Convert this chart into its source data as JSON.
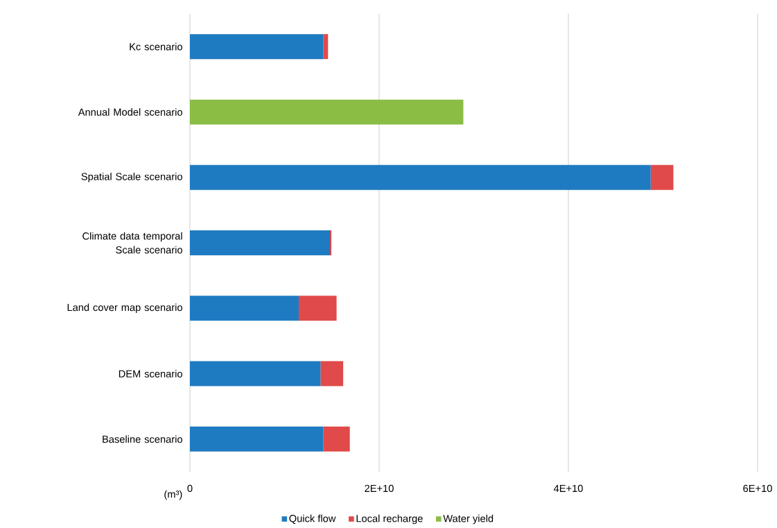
{
  "chart_data": {
    "type": "bar",
    "orientation": "horizontal",
    "stacked": true,
    "categories": [
      "Kc scenario",
      "Annual Model scenario",
      "Spatial Scale scenario",
      "Climate data temporal Scale scenario",
      "Land cover map scenario",
      "DEM scenario",
      "Baseline scenario"
    ],
    "series": [
      {
        "name": "Quick flow",
        "color": "#1f7bc1",
        "values": [
          14100000000.0,
          null,
          48700000000.0,
          14800000000.0,
          11500000000.0,
          13800000000.0,
          14100000000.0
        ]
      },
      {
        "name": "Local recharge",
        "color": "#e04a4a",
        "values": [
          500000000.0,
          null,
          2400000000.0,
          150000000.0,
          4000000000.0,
          2400000000.0,
          2800000000.0
        ]
      },
      {
        "name": "Water yield",
        "color": "#8bbd45",
        "values": [
          null,
          28900000000.0,
          null,
          null,
          null,
          null,
          null
        ]
      }
    ],
    "xlabel": "(m³)",
    "xlim": [
      0,
      60000000000.0
    ],
    "xticks": [
      0,
      {
        "value": 20000000000.0,
        "label": "2E+10"
      },
      {
        "value": 40000000000.0,
        "label": "4E+10"
      },
      {
        "value": 60000000000.0,
        "label": "6E+10"
      }
    ],
    "grid": "x",
    "legend": "bottom"
  }
}
